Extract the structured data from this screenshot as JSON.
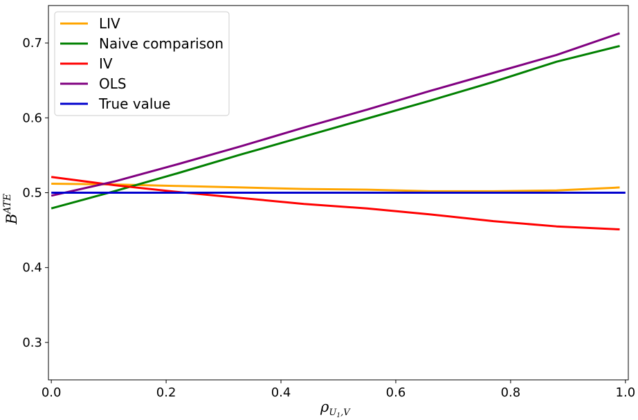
{
  "chart_data": {
    "type": "line",
    "xlabel": "ρ",
    "xlabel_sub": "U",
    "xlabel_sub2": "1",
    "xlabel_sub3": ",V",
    "ylabel": "B",
    "ylabel_sup": "ATE",
    "xlim": [
      -0.005,
      1.005
    ],
    "ylim": [
      0.25,
      0.75
    ],
    "xticks": [
      0.0,
      0.2,
      0.4,
      0.6,
      0.8,
      1.0
    ],
    "xtick_labels": [
      "0.0",
      "0.2",
      "0.4",
      "0.6",
      "0.8",
      "1.0"
    ],
    "yticks": [
      0.3,
      0.4,
      0.5,
      0.6,
      0.7
    ],
    "ytick_labels": [
      "0.3",
      "0.4",
      "0.5",
      "0.6",
      "0.7"
    ],
    "grid": false,
    "legend_position": "top-left",
    "series": [
      {
        "name": "LIV",
        "color": "#FFA500",
        "x": [
          0.0,
          0.11,
          0.22,
          0.33,
          0.44,
          0.55,
          0.66,
          0.77,
          0.88,
          0.99
        ],
        "y": [
          0.512,
          0.511,
          0.509,
          0.507,
          0.505,
          0.504,
          0.502,
          0.502,
          0.503,
          0.507
        ]
      },
      {
        "name": "Naive comparison",
        "color": "#008000",
        "x": [
          0.0,
          0.11,
          0.22,
          0.33,
          0.44,
          0.55,
          0.66,
          0.77,
          0.88,
          0.99
        ],
        "y": [
          0.479,
          0.502,
          0.526,
          0.551,
          0.575,
          0.599,
          0.623,
          0.648,
          0.675,
          0.696
        ]
      },
      {
        "name": "IV",
        "color": "#FF0000",
        "x": [
          0.0,
          0.11,
          0.22,
          0.33,
          0.44,
          0.55,
          0.66,
          0.77,
          0.88,
          0.99
        ],
        "y": [
          0.521,
          0.51,
          0.501,
          0.493,
          0.485,
          0.479,
          0.471,
          0.462,
          0.455,
          0.451
        ]
      },
      {
        "name": "OLS",
        "color": "#800080",
        "x": [
          0.0,
          0.11,
          0.22,
          0.33,
          0.44,
          0.55,
          0.66,
          0.77,
          0.88,
          0.99
        ],
        "y": [
          0.496,
          0.515,
          0.538,
          0.562,
          0.587,
          0.611,
          0.636,
          0.66,
          0.684,
          0.713
        ]
      },
      {
        "name": "True value",
        "color": "#0000CD",
        "x": [
          0.0,
          1.0
        ],
        "y": [
          0.5,
          0.5
        ]
      }
    ]
  }
}
